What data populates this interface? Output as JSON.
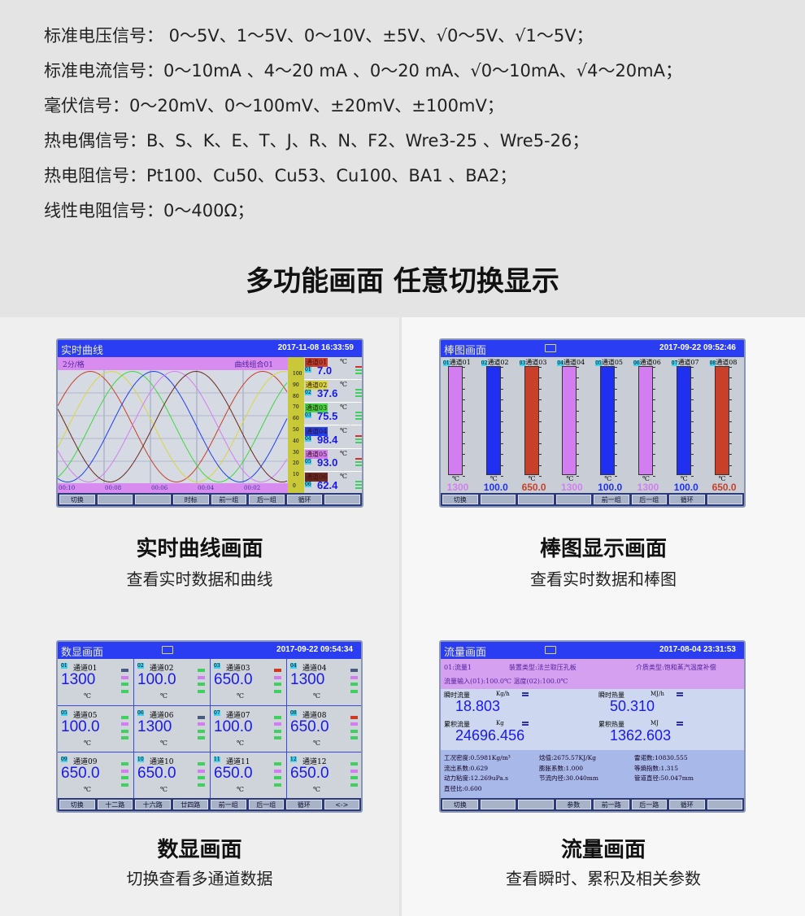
{
  "specs": [
    "标准电压信号： 0～5V、1～5V、0～10V、±5V、√0～5V、√1～5V；",
    "标准电流信号：0～10mA 、4～20 mA 、0～20 mA、√0～10mA、√4～20mA；",
    "毫伏信号：0～20mV、0～100mV、±20mV、±100mV；",
    "热电偶信号：B、S、K、E、T、J、R、N、F2、Wre3-25 、Wre5-26；",
    "热电阻信号：Pt100、Cu50、Cu53、Cu100、BA1 、BA2；",
    "线性电阻信号：0～400Ω；"
  ],
  "headline": "多功能画面  任意切换显示",
  "colors": {
    "header_blue": "#2b3df2",
    "value_blue": "#1818f0",
    "violet": "#d27ef0",
    "red": "#c8402a"
  },
  "panels": [
    {
      "title": "实时曲线画面",
      "subtitle": "查看实时数据和曲线"
    },
    {
      "title": "棒图显示画面",
      "subtitle": "查看实时数据和棒图"
    },
    {
      "title": "数显画面",
      "subtitle": "切换查看多通道数据"
    },
    {
      "title": "流量画面",
      "subtitle": "查看瞬时、累积及相关参数"
    }
  ],
  "curve": {
    "title": "实时曲线",
    "datetime": "2017-11-08 16:33:59",
    "scale": "2分/格",
    "group": "曲线组合01",
    "time_ticks": [
      "00:10",
      "00:08",
      "00:06",
      "00:04",
      "00:02"
    ],
    "y_ticks": [
      "100",
      "90",
      "80",
      "70",
      "60",
      "50",
      "40",
      "30",
      "20",
      "10",
      "0"
    ],
    "unit": "℃",
    "channels": [
      {
        "name": "通道01",
        "no": "01",
        "value": "7.0",
        "color": "#c8402a"
      },
      {
        "name": "通道02",
        "no": "02",
        "value": "37.6",
        "color": "#d8d840"
      },
      {
        "name": "通道03",
        "no": "03",
        "value": "75.5",
        "color": "#40d840"
      },
      {
        "name": "通道04",
        "no": "04",
        "value": "98.4",
        "color": "#2040f0"
      },
      {
        "name": "通道05",
        "no": "05",
        "value": "93.0",
        "color": "#d27ef0"
      },
      {
        "name": "通道06",
        "no": "06",
        "value": "62.4",
        "color": "#6a2a20"
      }
    ],
    "buttons": [
      "切换",
      "",
      "",
      "时标",
      "前一组",
      "后一组",
      "循环",
      ""
    ]
  },
  "bar": {
    "title": "棒图画面",
    "datetime": "2017-09-22 09:52:46",
    "unit": "℃",
    "channels": [
      {
        "no": "01",
        "name": "通道01",
        "value": "1300",
        "color": "#d27ef0"
      },
      {
        "no": "02",
        "name": "通道02",
        "value": "100.0",
        "color": "#2030f0"
      },
      {
        "no": "03",
        "name": "通道03",
        "value": "650.0",
        "color": "#c8402a"
      },
      {
        "no": "04",
        "name": "通道04",
        "value": "1300",
        "color": "#d27ef0"
      },
      {
        "no": "05",
        "name": "通道05",
        "value": "100.0",
        "color": "#2030f0"
      },
      {
        "no": "06",
        "name": "通道06",
        "value": "1300",
        "color": "#d27ef0"
      },
      {
        "no": "07",
        "name": "通道07",
        "value": "100.0",
        "color": "#2030f0"
      },
      {
        "no": "08",
        "name": "通道08",
        "value": "650.0",
        "color": "#c8402a"
      }
    ],
    "buttons": [
      "切换",
      "",
      "",
      "",
      "前一组",
      "后一组",
      "循环",
      ""
    ]
  },
  "digital": {
    "title": "数显画面",
    "datetime": "2017-09-22 09:54:34",
    "unit": "℃",
    "channels": [
      {
        "no": "01",
        "name": "通道01",
        "value": "1300"
      },
      {
        "no": "02",
        "name": "通道02",
        "value": "100.0"
      },
      {
        "no": "03",
        "name": "通道03",
        "value": "650.0"
      },
      {
        "no": "04",
        "name": "通道04",
        "value": "1300"
      },
      {
        "no": "05",
        "name": "通道05",
        "value": "100.0"
      },
      {
        "no": "06",
        "name": "通道06",
        "value": "1300"
      },
      {
        "no": "07",
        "name": "通道07",
        "value": "100.0"
      },
      {
        "no": "08",
        "name": "通道08",
        "value": "650.0"
      },
      {
        "no": "09",
        "name": "通道09",
        "value": "650.0"
      },
      {
        "no": "10",
        "name": "通道10",
        "value": "650.0"
      },
      {
        "no": "11",
        "name": "通道11",
        "value": "650.0"
      },
      {
        "no": "12",
        "name": "通道12",
        "value": "650.0"
      }
    ],
    "buttons": [
      "切换",
      "十二路",
      "十六路",
      "廿四路",
      "前一组",
      "后一组",
      "循环",
      "<->"
    ]
  },
  "flow": {
    "title": "流量画面",
    "datetime": "2017-08-04 23:31:53",
    "info1": "01:流量1",
    "device": "装置类型:法兰取压孔板",
    "medium": "介质类型:饱和蒸汽温度补偿",
    "input": "流量输入(01):100.0℃   温度(02):100.0℃",
    "readings": [
      {
        "label": "瞬时流量",
        "unit": "Kg/h",
        "value": "18.803"
      },
      {
        "label": "瞬时热量",
        "unit": "MJ/h",
        "value": "50.310"
      },
      {
        "label": "累积流量",
        "unit": "Kg",
        "value": "24696.456"
      },
      {
        "label": "累积热量",
        "unit": "MJ",
        "value": "1362.603"
      }
    ],
    "params": [
      "工况密度:0.5981Kg/m³",
      "焓值:2675.57KJ/Kg",
      "雷诺数:10830.555",
      "流出系数:0.629",
      "膨胀系数:1.000",
      "等熵指数:1.315",
      "动力粘度:12.269uPa.s",
      "节流内径:30.040mm",
      "管道直径:50.047mm",
      "直径比:0.600"
    ],
    "buttons": [
      "切换",
      "",
      "",
      "参数",
      "前一路",
      "后一路",
      "循环",
      ""
    ]
  }
}
